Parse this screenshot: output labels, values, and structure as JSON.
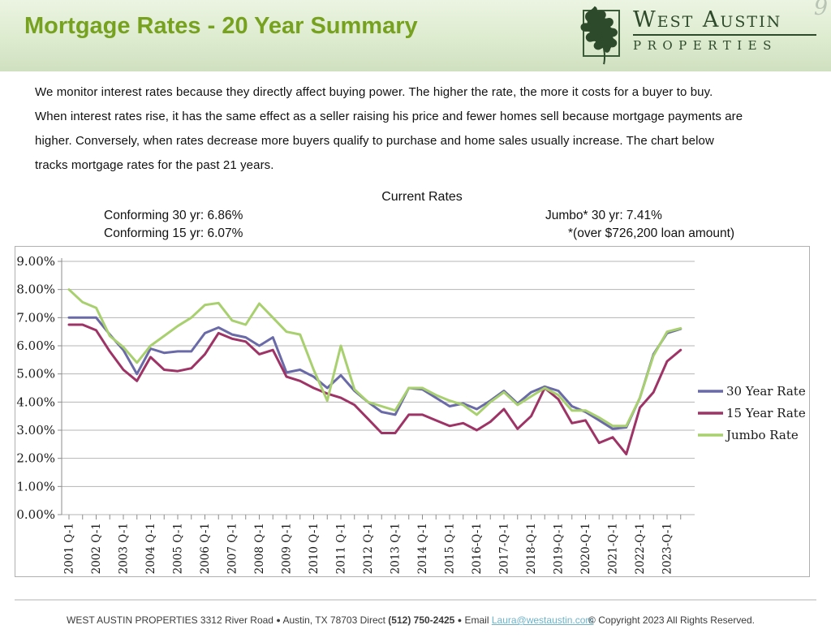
{
  "header": {
    "title": "Mortgage Rates - 20 Year Summary",
    "corner_glyph": "9",
    "logo": {
      "name": "West Austin",
      "subname": "PROPERTIES",
      "brand_green": "#2d4a2b"
    }
  },
  "intro": {
    "lines": [
      "We monitor interest rates because they directly affect buying power.  The higher the rate, the more it costs for a buyer to buy.",
      "When interest rates rise, it has the same effect as a seller raising his price and fewer homes sell because mortgage payments are",
      "higher.  Conversely, when rates decrease more buyers qualify to purchase and home sales usually increase.  The chart below",
      "tracks mortgage rates for the past 21 years."
    ]
  },
  "current_rates": {
    "heading": "Current Rates",
    "conforming_30": "Conforming 30 yr: 6.86%",
    "conforming_15": "Conforming 15 yr: 6.07%",
    "jumbo": "Jumbo* 30 yr: 7.41%",
    "jumbo_note": "*(over $726,200 loan amount)"
  },
  "chart_data": {
    "type": "line",
    "grid": true,
    "legend_position": "right",
    "ylim": [
      0,
      9
    ],
    "y_tick_labels": [
      "0.00%",
      "1.00%",
      "2.00%",
      "3.00%",
      "4.00%",
      "5.00%",
      "6.00%",
      "7.00%",
      "8.00%",
      "9.00%"
    ],
    "x_labels": [
      "2001 Q-1",
      "2002 Q-1",
      "2003 Q-1",
      "2004 Q-1",
      "2005 Q-1",
      "2006 Q-1",
      "2007 Q-1",
      "2008 Q-1",
      "2009 Q-1",
      "2010 Q-1",
      "2011 Q-1",
      "2012 Q-1",
      "2013 Q-1",
      "2014 Q-1",
      "2015 Q-1",
      "2016-Q-1",
      "2017-Q-1",
      "2018-Q-1",
      "2019-Q-1",
      "2020-Q-1",
      "2021-Q-1",
      "2022-Q-1",
      "2023-Q-1"
    ],
    "categories": [
      "2001 Q-1",
      "2001 Q-3",
      "2002 Q-1",
      "2002 Q-3",
      "2003 Q-1",
      "2003 Q-3",
      "2004 Q-1",
      "2004 Q-3",
      "2005 Q-1",
      "2005 Q-3",
      "2006 Q-1",
      "2006 Q-3",
      "2007 Q-1",
      "2007 Q-3",
      "2008 Q-1",
      "2008 Q-3",
      "2009 Q-1",
      "2009 Q-3",
      "2010 Q-1",
      "2010 Q-3",
      "2011 Q-1",
      "2011 Q-3",
      "2012 Q-1",
      "2012 Q-3",
      "2013 Q-1",
      "2013 Q-3",
      "2014 Q-1",
      "2014 Q-3",
      "2015 Q-1",
      "2015 Q-3",
      "2016 Q-1",
      "2016 Q-3",
      "2017 Q-1",
      "2017 Q-3",
      "2018 Q-1",
      "2018 Q-3",
      "2019 Q-1",
      "2019 Q-3",
      "2020 Q-1",
      "2020 Q-3",
      "2021 Q-1",
      "2021 Q-3",
      "2022 Q-1",
      "2022 Q-3",
      "2023 Q-1",
      "2023 Q-3"
    ],
    "series": [
      {
        "name": "30 Year Rate",
        "color": "#6a6aa8",
        "values": [
          7.0,
          7.0,
          7.0,
          6.4,
          5.85,
          5.0,
          5.9,
          5.75,
          5.8,
          5.8,
          6.45,
          6.65,
          6.4,
          6.3,
          6.0,
          6.3,
          5.05,
          5.15,
          4.9,
          4.5,
          4.95,
          4.4,
          4.0,
          3.65,
          3.55,
          4.5,
          4.45,
          4.15,
          3.85,
          3.95,
          3.75,
          4.05,
          4.4,
          3.95,
          4.35,
          4.55,
          4.4,
          3.85,
          3.65,
          3.35,
          3.05,
          3.1,
          4.15,
          5.7,
          6.45,
          6.6
        ]
      },
      {
        "name": "15 Year Rate",
        "color": "#9e3366",
        "values": [
          6.75,
          6.75,
          6.55,
          5.8,
          5.15,
          4.75,
          5.6,
          5.15,
          5.1,
          5.2,
          5.7,
          6.45,
          6.25,
          6.15,
          5.7,
          5.85,
          4.9,
          4.75,
          4.5,
          4.3,
          4.15,
          3.9,
          3.4,
          2.9,
          2.9,
          3.55,
          3.55,
          3.35,
          3.15,
          3.25,
          3.0,
          3.3,
          3.75,
          3.05,
          3.5,
          4.5,
          4.1,
          3.25,
          3.35,
          2.55,
          2.75,
          2.15,
          3.8,
          4.35,
          5.45,
          5.85
        ]
      },
      {
        "name": "Jumbo Rate",
        "color": "#a8d06e",
        "values": [
          8.0,
          7.55,
          7.35,
          6.35,
          5.95,
          5.4,
          6.0,
          6.35,
          6.7,
          7.0,
          7.45,
          7.52,
          6.9,
          6.75,
          7.5,
          7.0,
          6.5,
          6.4,
          5.15,
          4.05,
          6.0,
          4.45,
          4.0,
          3.85,
          3.7,
          4.5,
          4.5,
          4.25,
          4.05,
          3.9,
          3.55,
          4.0,
          4.35,
          3.9,
          4.2,
          4.5,
          4.25,
          3.7,
          3.7,
          3.45,
          3.15,
          3.15,
          4.15,
          5.65,
          6.5,
          6.62
        ]
      }
    ]
  },
  "footer": {
    "company": "WEST AUSTIN PROPERTIES 3312 River Road",
    "bullet": "●",
    "address": "Austin, TX 78703 Direct",
    "phone": "(512) 750-2425",
    "email_label": "Email",
    "email": "Laura@westaustin.com",
    "copyright": "© Copyright 2023 All Rights Reserved."
  }
}
